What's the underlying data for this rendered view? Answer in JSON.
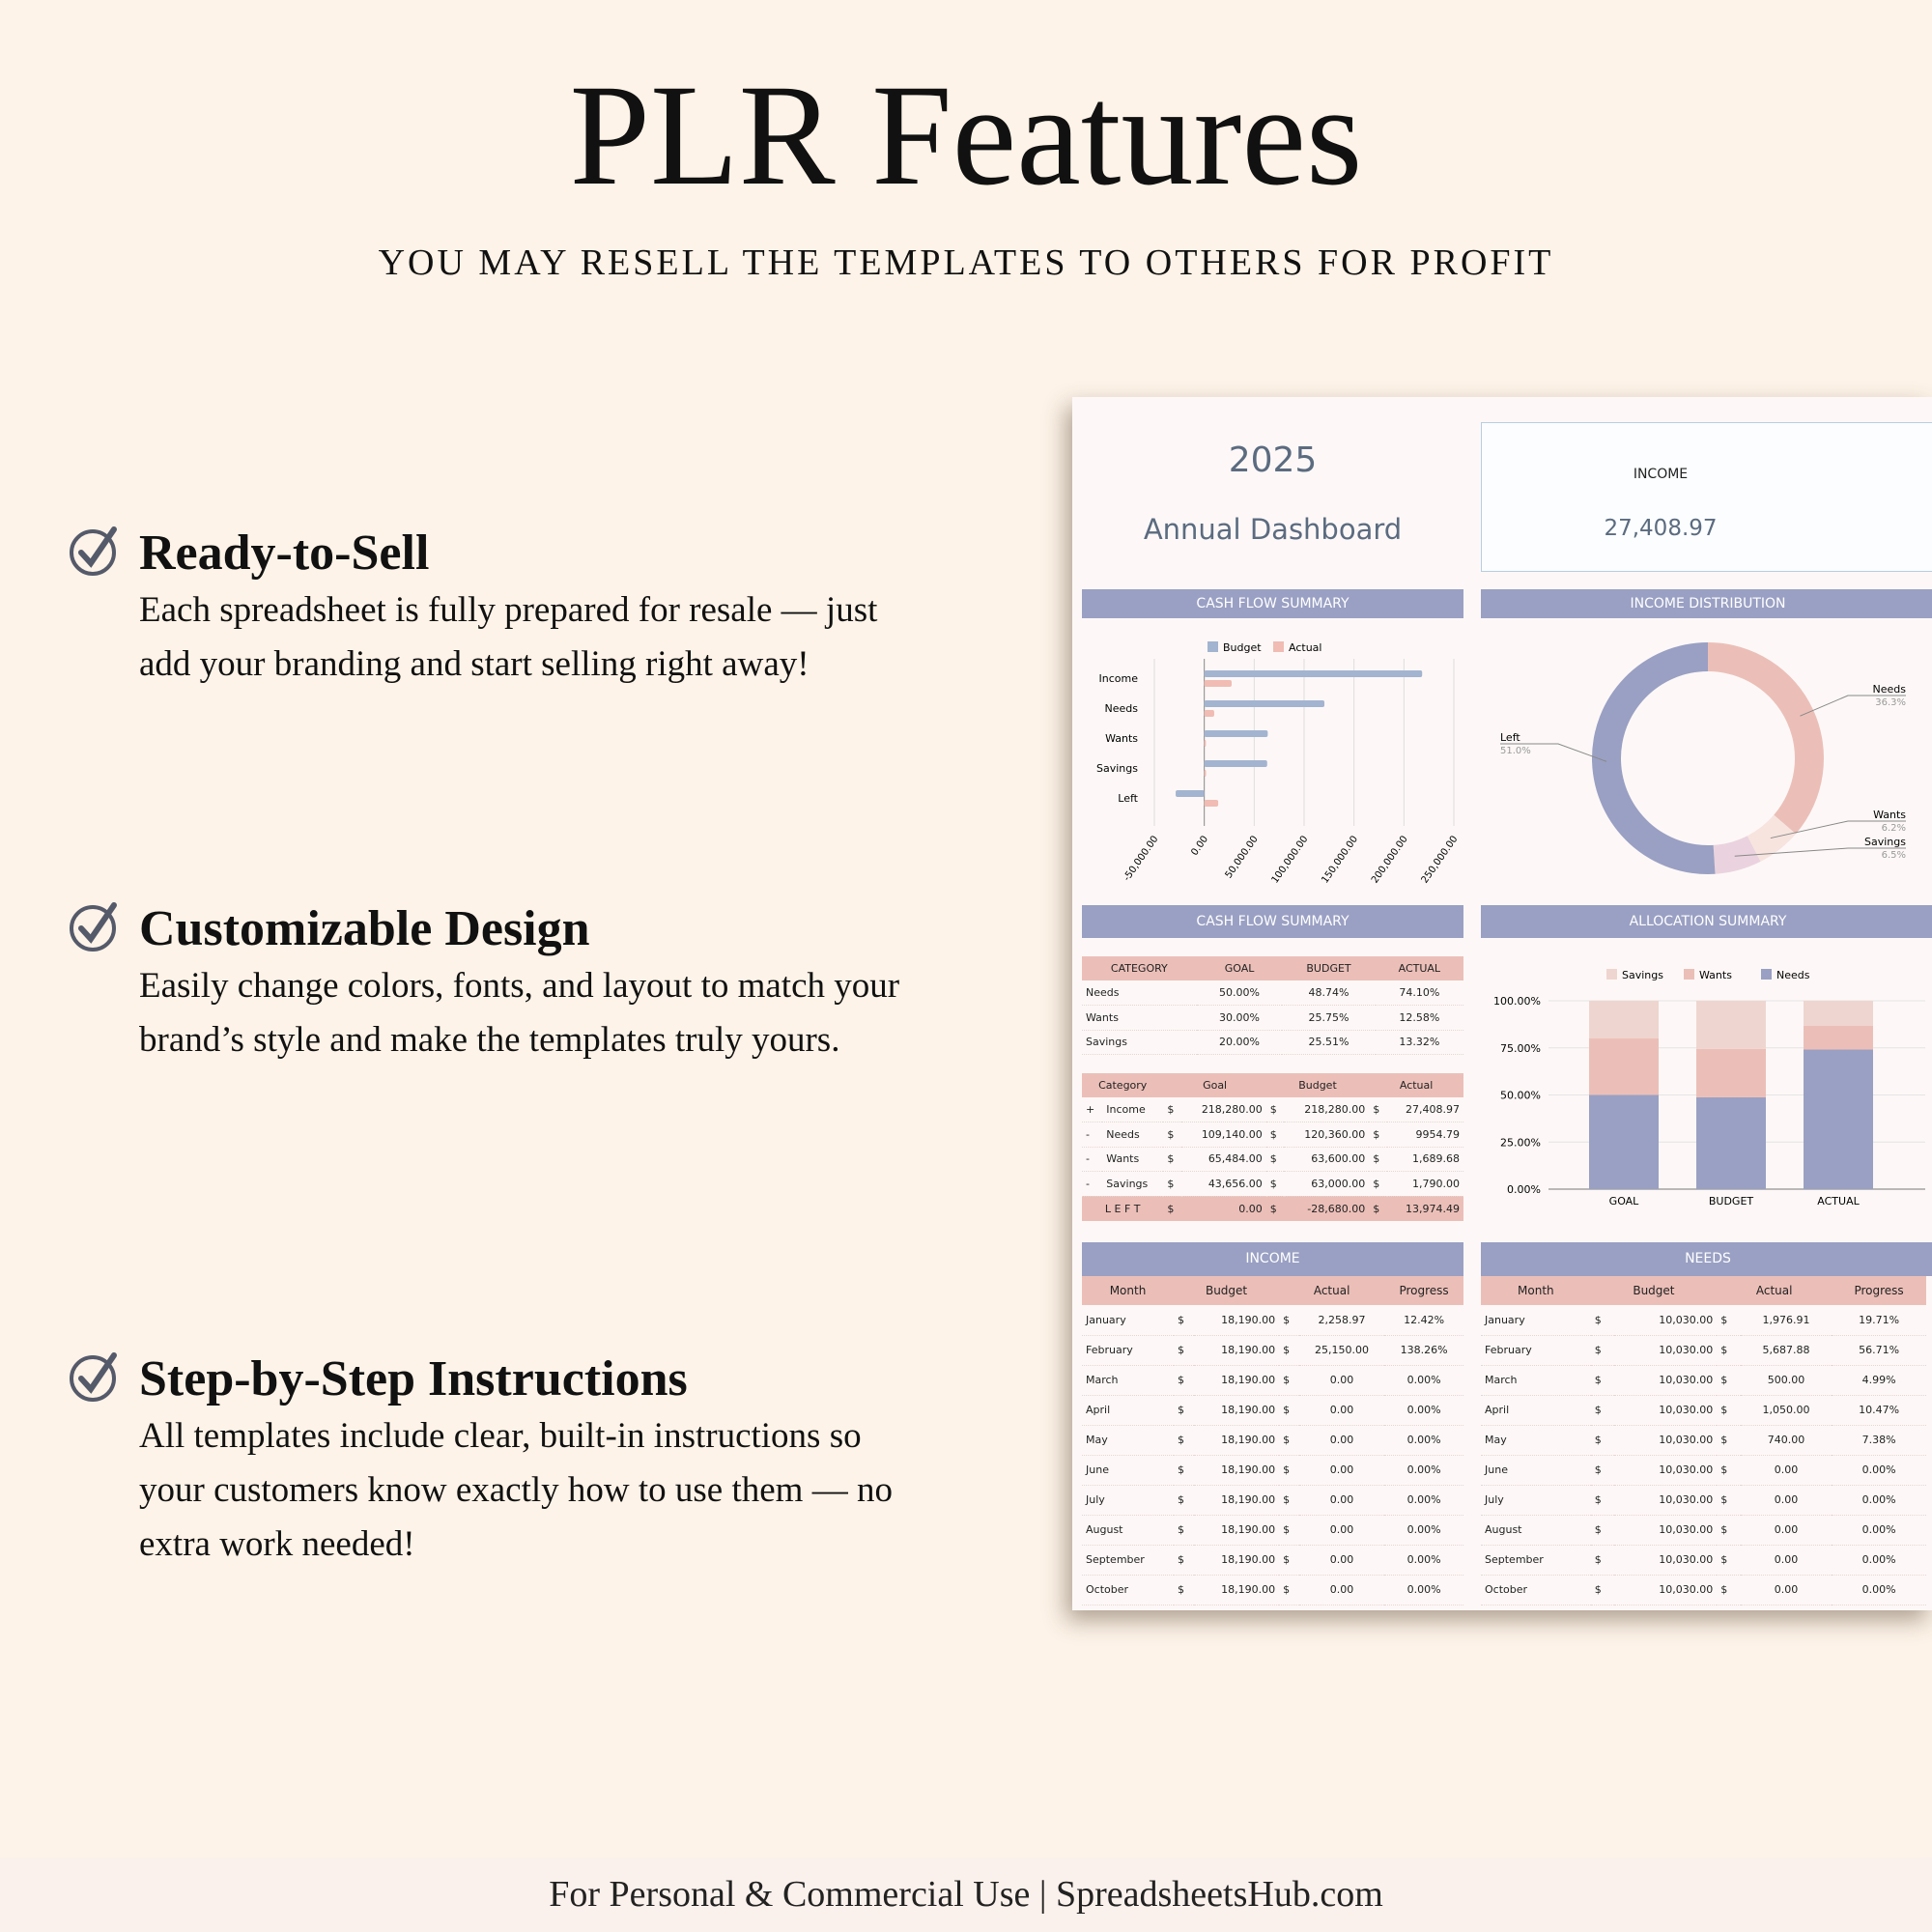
{
  "title": "PLR Features",
  "subtitle": "YOU MAY RESELL THE TEMPLATES TO OTHERS FOR PROFIT",
  "features": [
    {
      "icon": "check-circle-icon",
      "heading": "Ready-to-Sell",
      "text": "Each spreadsheet is fully prepared for resale — just add your branding and start selling right away!"
    },
    {
      "icon": "check-circle-icon",
      "heading": "Customizable Design",
      "text": "Easily change colors, fonts, and layout to match your brand’s style and make the templates truly yours."
    },
    {
      "icon": "check-circle-icon",
      "heading": "Step-by-Step Instructions",
      "text": "All templates include clear, built-in instructions so your customers know exactly how to use them — no extra work needed!"
    }
  ],
  "footer": "For Personal & Commercial Use  |  SpreadsheetsHub.com",
  "colors": {
    "header": "#9aa0c3",
    "pink": "#ebbfb8",
    "budget": "#a3b4d0",
    "actual": "#f0bcb3",
    "savings": "#efd5cf",
    "wants_slice": "#f7e4df",
    "savings_slice": "#ead3de",
    "page_bg": "#fdf3e8"
  },
  "dashboard": {
    "year": "2025",
    "subtitle": "Annual Dashboard",
    "income_label": "INCOME",
    "income_value": "27,408.97",
    "headers": {
      "cashflow_chart": "CASH FLOW SUMMARY",
      "income_dist": "INCOME DISTRIBUTION",
      "cashflow_table": "CASH FLOW SUMMARY",
      "allocation": "ALLOCATION  SUMMARY",
      "income": "INCOME",
      "needs": "NEEDS"
    },
    "pct_table": {
      "columns": [
        "CATEGORY",
        "GOAL",
        "BUDGET",
        "ACTUAL"
      ],
      "rows": [
        [
          "Needs",
          "50.00%",
          "48.74%",
          "74.10%"
        ],
        [
          "Wants",
          "30.00%",
          "25.75%",
          "12.58%"
        ],
        [
          "Savings",
          "20.00%",
          "25.51%",
          "13.32%"
        ]
      ]
    },
    "amt_table": {
      "columns": [
        "Category",
        "Goal",
        "Budget",
        "Actual"
      ],
      "currency": "$",
      "rows": [
        [
          "+",
          "Income",
          "218,280.00",
          "218,280.00",
          "27,408.97"
        ],
        [
          "-",
          "Needs",
          "109,140.00",
          "120,360.00",
          "9954.79"
        ],
        [
          "-",
          "Wants",
          "65,484.00",
          "63,600.00",
          "1,689.68"
        ],
        [
          "-",
          "Savings",
          "43,656.00",
          "63,000.00",
          "1,790.00"
        ]
      ],
      "left": [
        "L E F T",
        "0.00",
        "-28,680.00",
        "13,974.49"
      ]
    },
    "income_table": {
      "columns": [
        "Month",
        "Budget",
        "Actual",
        "Progress"
      ],
      "rows": [
        [
          "January",
          "18,190.00",
          "2,258.97",
          "12.42%"
        ],
        [
          "February",
          "18,190.00",
          "25,150.00",
          "138.26%"
        ],
        [
          "March",
          "18,190.00",
          "0.00",
          "0.00%"
        ],
        [
          "April",
          "18,190.00",
          "0.00",
          "0.00%"
        ],
        [
          "May",
          "18,190.00",
          "0.00",
          "0.00%"
        ],
        [
          "June",
          "18,190.00",
          "0.00",
          "0.00%"
        ],
        [
          "July",
          "18,190.00",
          "0.00",
          "0.00%"
        ],
        [
          "August",
          "18,190.00",
          "0.00",
          "0.00%"
        ],
        [
          "September",
          "18,190.00",
          "0.00",
          "0.00%"
        ],
        [
          "October",
          "18,190.00",
          "0.00",
          "0.00%"
        ]
      ]
    },
    "needs_table": {
      "columns": [
        "Month",
        "Budget",
        "Actual",
        "Progress"
      ],
      "rows": [
        [
          "January",
          "10,030.00",
          "1,976.91",
          "19.71%"
        ],
        [
          "February",
          "10,030.00",
          "5,687.88",
          "56.71%"
        ],
        [
          "March",
          "10,030.00",
          "500.00",
          "4.99%"
        ],
        [
          "April",
          "10,030.00",
          "1,050.00",
          "10.47%"
        ],
        [
          "May",
          "10,030.00",
          "740.00",
          "7.38%"
        ],
        [
          "June",
          "10,030.00",
          "0.00",
          "0.00%"
        ],
        [
          "July",
          "10,030.00",
          "0.00",
          "0.00%"
        ],
        [
          "August",
          "10,030.00",
          "0.00",
          "0.00%"
        ],
        [
          "September",
          "10,030.00",
          "0.00",
          "0.00%"
        ],
        [
          "October",
          "10,030.00",
          "0.00",
          "0.00%"
        ]
      ]
    }
  },
  "chart_data": [
    {
      "type": "bar",
      "orientation": "horizontal",
      "categories": [
        "Income",
        "Needs",
        "Wants",
        "Savings",
        "Left"
      ],
      "series": [
        {
          "name": "Budget",
          "values": [
            218280,
            120360,
            63600,
            63000,
            -28680
          ]
        },
        {
          "name": "Actual",
          "values": [
            27408.97,
            9954.79,
            1689.68,
            1790,
            13974.49
          ]
        }
      ],
      "xlim": [
        -50000,
        250000
      ],
      "ticks": [
        "-50,000.00",
        "0.00",
        "50,000.00",
        "100,000.00",
        "150,000.00",
        "200,000.00",
        "250,000.00"
      ],
      "grid": true,
      "legend": "top"
    },
    {
      "type": "pie",
      "donut": true,
      "slices": [
        {
          "label": "Needs",
          "value": 36.3,
          "text": "36.3%"
        },
        {
          "label": "Wants",
          "value": 6.2,
          "text": "6.2%"
        },
        {
          "label": "Savings",
          "value": 6.5,
          "text": "6.5%"
        },
        {
          "label": "Left",
          "value": 51.0,
          "text": "51.0%"
        }
      ]
    },
    {
      "type": "bar",
      "stacked": true,
      "categories": [
        "GOAL",
        "BUDGET",
        "ACTUAL"
      ],
      "series": [
        {
          "name": "Needs",
          "values": [
            50,
            48.74,
            74.1
          ]
        },
        {
          "name": "Wants",
          "values": [
            30,
            25.75,
            12.58
          ]
        },
        {
          "name": "Savings",
          "values": [
            20,
            25.51,
            13.32
          ]
        }
      ],
      "legend_order": [
        "Savings",
        "Wants",
        "Needs"
      ],
      "ylim": [
        0,
        100
      ],
      "ticks": [
        "0.00%",
        "25.00%",
        "50.00%",
        "75.00%",
        "100.00%"
      ],
      "grid": true,
      "legend": "top"
    }
  ]
}
